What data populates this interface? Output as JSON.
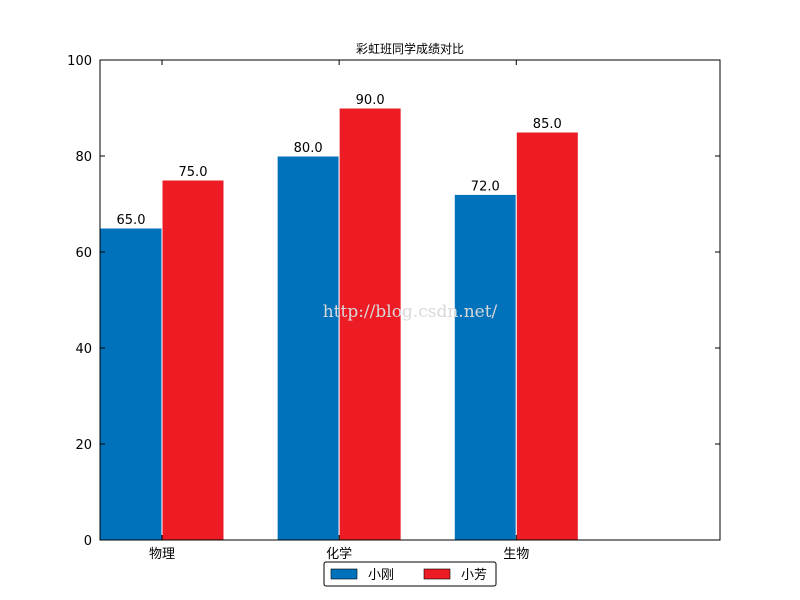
{
  "chart_data": {
    "type": "bar",
    "title": "彩虹班同学成绩对比",
    "categories": [
      "物理",
      "化学",
      "生物"
    ],
    "series": [
      {
        "name": "小刚",
        "values": [
          65.0,
          80.0,
          72.0
        ],
        "color": "#0072bc"
      },
      {
        "name": "小芳",
        "values": [
          75.0,
          90.0,
          85.0
        ],
        "color": "#ed1c24"
      }
    ],
    "ylim": [
      0,
      100
    ],
    "yticks": [
      0,
      20,
      40,
      60,
      80,
      100
    ],
    "xlabel": "",
    "ylabel": "",
    "grid": false,
    "legend_position": "bottom-center"
  },
  "watermark": "http://blog.csdn.net/"
}
